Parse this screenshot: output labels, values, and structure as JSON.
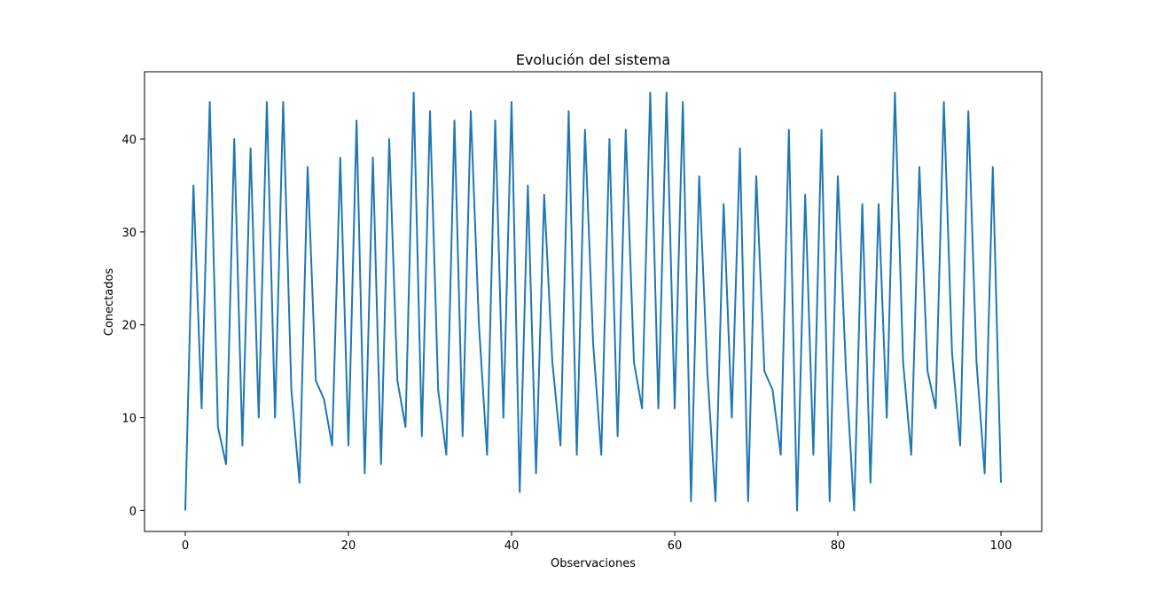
{
  "chart_data": {
    "type": "line",
    "title": "Evolución del sistema",
    "xlabel": "Observaciones",
    "ylabel": "Conectados",
    "xlim": [
      -5,
      105
    ],
    "ylim": [
      -2.25,
      47.25
    ],
    "xticks": [
      0,
      20,
      40,
      60,
      80,
      100
    ],
    "yticks": [
      0,
      10,
      20,
      30,
      40
    ],
    "grid": false,
    "color": "#1f77b4",
    "series": [
      {
        "x": [
          0,
          1,
          2,
          3,
          4,
          5,
          6,
          7,
          8,
          9,
          10,
          11,
          12,
          13,
          14,
          15,
          16,
          17,
          18,
          19,
          20,
          21,
          22,
          23,
          24,
          25,
          26,
          27,
          28,
          29,
          30,
          31,
          32,
          33,
          34,
          35,
          36,
          37,
          38,
          39,
          40,
          41,
          42,
          43,
          44,
          45,
          46,
          47,
          48,
          49,
          50,
          51,
          52,
          53,
          54,
          55,
          56,
          57,
          58,
          59,
          60,
          61,
          62,
          63,
          64,
          65,
          66,
          67,
          68,
          69,
          70,
          71,
          72,
          73,
          74,
          75,
          76,
          77,
          78,
          79,
          80,
          81,
          82,
          83,
          84,
          85,
          86,
          87,
          88,
          89,
          90,
          91,
          92,
          93,
          94,
          95,
          96,
          97,
          98,
          99,
          100
        ],
        "values": [
          0,
          35,
          11,
          44,
          9,
          5,
          40,
          7,
          39,
          10,
          44,
          10,
          44,
          13,
          3,
          37,
          14,
          12,
          7,
          38,
          7,
          42,
          4,
          38,
          5,
          40,
          14,
          9,
          45,
          8,
          43,
          13,
          6,
          42,
          8,
          43,
          20,
          6,
          42,
          10,
          44,
          2,
          35,
          4,
          34,
          16,
          7,
          43,
          6,
          41,
          18,
          6,
          40,
          8,
          41,
          16,
          11,
          45,
          11,
          45,
          11,
          44,
          1,
          36,
          15,
          1,
          33,
          10,
          39,
          1,
          36,
          15,
          13,
          6,
          41,
          0,
          34,
          6,
          41,
          1,
          36,
          15,
          0,
          33,
          3,
          33,
          10,
          45,
          16,
          6,
          37,
          15,
          11,
          44,
          17,
          7,
          43,
          16,
          4,
          37,
          3
        ]
      }
    ]
  }
}
